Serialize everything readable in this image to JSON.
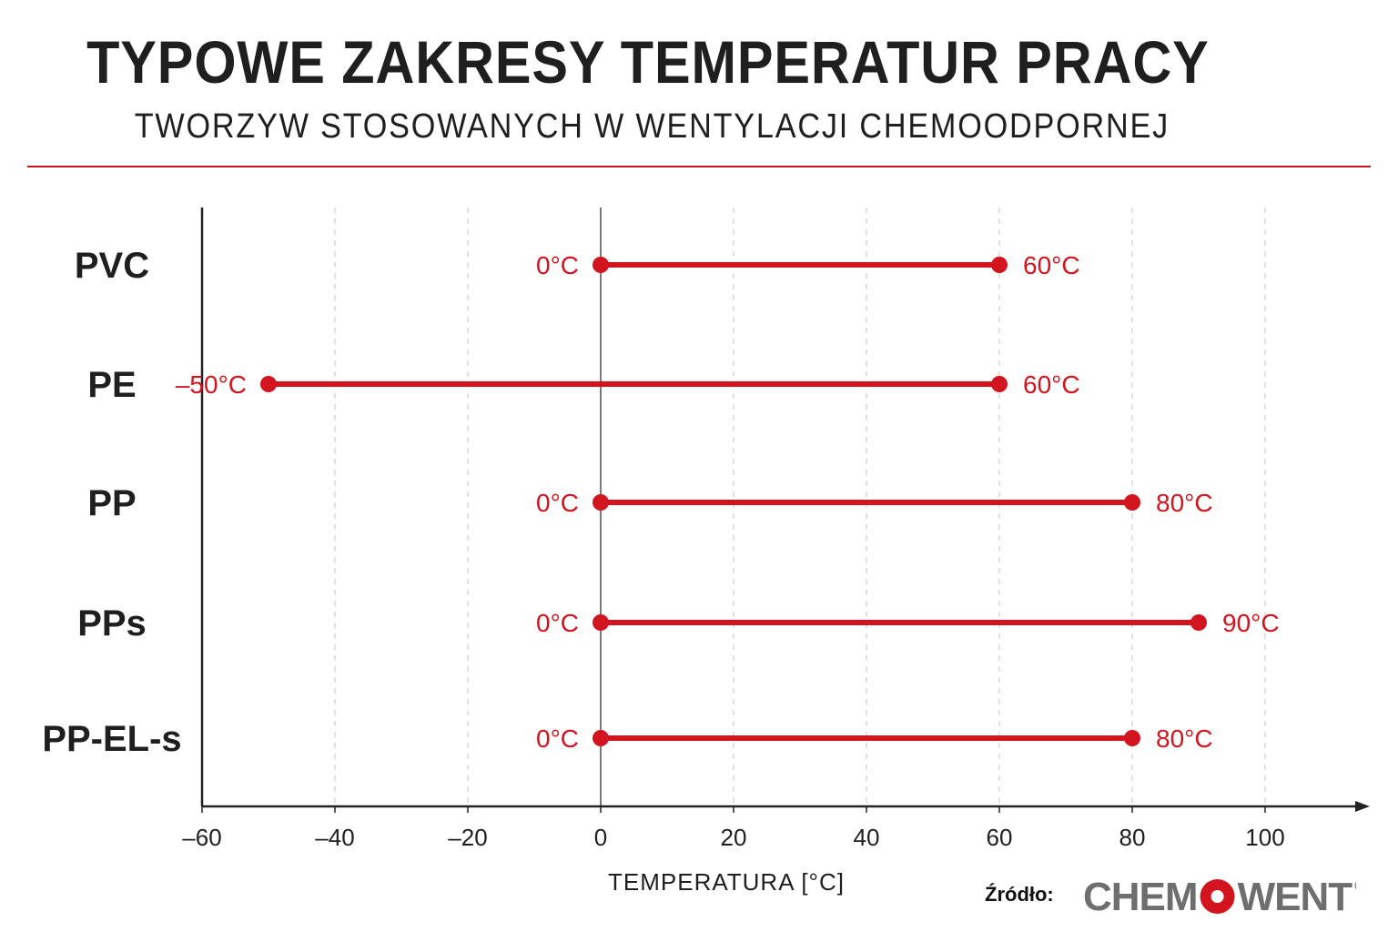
{
  "header": {
    "title": "TYPOWE ZAKRESY TEMPERATUR PRACY",
    "subtitle": "TWORZYW STOSOWANYCH W WENTYLACJI CHEMOODPORNEJ"
  },
  "colors": {
    "accent": "#d2141f",
    "text": "#1f1f1f",
    "grid": "#cfcfcf",
    "logo_gray": "#6e6e6e"
  },
  "chart_data": {
    "type": "range",
    "orientation": "horizontal",
    "categories": [
      "PVC",
      "PE",
      "PP",
      "PPs",
      "PP-EL-s"
    ],
    "ranges": [
      {
        "category": "PVC",
        "start": 0,
        "end": 60,
        "start_label": "0°C",
        "end_label": "60°C"
      },
      {
        "category": "PE",
        "start": -50,
        "end": 60,
        "start_label": "–50°C",
        "end_label": "60°C"
      },
      {
        "category": "PP",
        "start": 0,
        "end": 80,
        "start_label": "0°C",
        "end_label": "80°C"
      },
      {
        "category": "PPs",
        "start": 0,
        "end": 90,
        "start_label": "0°C",
        "end_label": "90°C"
      },
      {
        "category": "PP-EL-s",
        "start": 0,
        "end": 80,
        "start_label": "0°C",
        "end_label": "80°C"
      }
    ],
    "xlabel": "TEMPERATURA [°C]",
    "xlim": [
      -60,
      110
    ],
    "xticks": [
      -60,
      -40,
      -20,
      0,
      20,
      40,
      60,
      80,
      100
    ],
    "xtick_labels": [
      "–60",
      "–40",
      "–20",
      "0",
      "20",
      "40",
      "60",
      "80",
      "100"
    ],
    "grid": "vertical-dashed",
    "legend": "none"
  },
  "source": {
    "label": "Źródło:",
    "logo_text": "CHEMOWENT",
    "logo_mark": "R"
  }
}
